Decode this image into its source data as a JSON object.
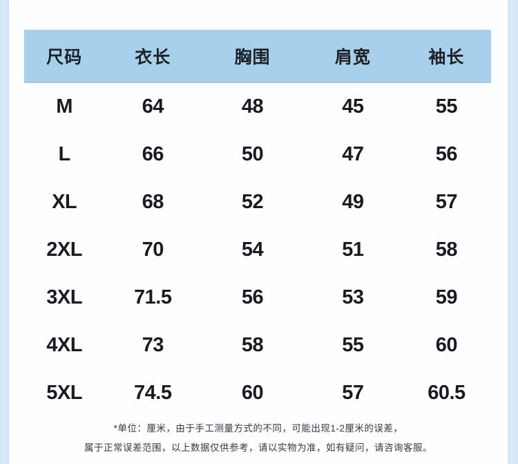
{
  "chart_data": {
    "type": "table",
    "columns": [
      "尺码",
      "衣长",
      "胸围",
      "肩宽",
      "袖长"
    ],
    "rows": [
      [
        "M",
        "64",
        "48",
        "45",
        "55"
      ],
      [
        "L",
        "66",
        "50",
        "47",
        "56"
      ],
      [
        "XL",
        "68",
        "52",
        "49",
        "57"
      ],
      [
        "2XL",
        "70",
        "54",
        "51",
        "58"
      ],
      [
        "3XL",
        "71.5",
        "56",
        "53",
        "59"
      ],
      [
        "4XL",
        "73",
        "58",
        "55",
        "60"
      ],
      [
        "5XL",
        "74.5",
        "60",
        "57",
        "60.5"
      ]
    ],
    "unit": "厘米"
  },
  "footnote": {
    "line1": "*单位：厘米，由于手工测量方式的不同，可能出现1-2厘米的误差，",
    "line2": "属于正常误差范围，以上数据仅供参考，请以实物为准，如有疑问，请咨询客服。"
  },
  "colors": {
    "page_background": "#d8eaf9",
    "card_background": "#fdfeff",
    "header_background": "#a8cfec",
    "header_edge": "#9cc6e2",
    "table_text": "#191b1e",
    "footnote_text": "#35383d"
  }
}
